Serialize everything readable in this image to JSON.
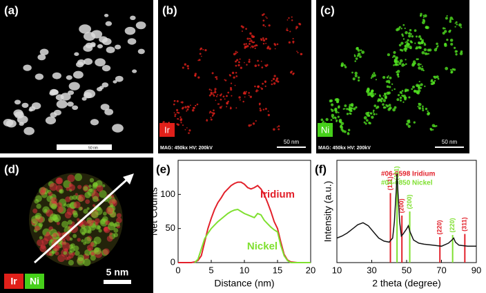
{
  "images": [
    {
      "label": "(a)",
      "scale_bar": "50 nm"
    },
    {
      "label": "(b)",
      "element": "Ir",
      "info": "MAG: 450kx  HV: 200kV",
      "scale_bar": "50 nm"
    },
    {
      "label": "(c)",
      "element": "Ni",
      "info": "MAG: 450kx  HV: 200kV",
      "scale_bar": "50 nm"
    },
    {
      "label": "(d)",
      "elements": [
        "Ir",
        "Ni"
      ],
      "scale_bar": "5 nm"
    }
  ],
  "chart_data": [
    {
      "type": "line",
      "panel_label": "(e)",
      "x_label": "Distance (nm)",
      "y_label": "Net Counts",
      "x": [
        0,
        1,
        2,
        2.5,
        3,
        3.5,
        4,
        4.5,
        5,
        5.5,
        6,
        6.5,
        7,
        7.5,
        8,
        8.5,
        9,
        9.5,
        10,
        10.5,
        11,
        11.5,
        12,
        12.5,
        13,
        13.5,
        14,
        14.5,
        15,
        15.5,
        16,
        16.5,
        17,
        18,
        20
      ],
      "series": [
        {
          "name": "Iridium",
          "color": "#e2202a",
          "values": [
            0,
            0,
            0,
            1,
            3,
            10,
            30,
            50,
            65,
            78,
            88,
            95,
            103,
            108,
            113,
            116,
            118,
            118,
            115,
            110,
            108,
            110,
            113,
            108,
            100,
            88,
            75,
            60,
            50,
            30,
            12,
            4,
            1,
            0,
            0
          ]
        },
        {
          "name": "Nickel",
          "color": "#7fe030",
          "values": [
            null,
            null,
            null,
            0,
            5,
            20,
            35,
            43,
            50,
            55,
            60,
            64,
            68,
            72,
            75,
            77,
            78,
            75,
            72,
            70,
            68,
            66,
            72,
            70,
            62,
            57,
            52,
            48,
            45,
            25,
            10,
            3,
            0,
            0,
            0
          ]
        }
      ],
      "xlim": [
        0,
        20
      ],
      "xticks": [
        0,
        5,
        10,
        15,
        20
      ],
      "ylim": [
        0,
        150
      ],
      "yticks": [
        0,
        50,
        100
      ]
    },
    {
      "type": "line",
      "panel_label": "(f)",
      "x_label": "2 theta (degree)",
      "y_label": "Intensity (a.u.)",
      "x": [
        10,
        13,
        16,
        19,
        22,
        25,
        28,
        31,
        34,
        37,
        40,
        42,
        43,
        44,
        44.5,
        45,
        46,
        47,
        48,
        50,
        51,
        52,
        54,
        57,
        60,
        65,
        70,
        74,
        76,
        77,
        78,
        80,
        85,
        90
      ],
      "series": [
        {
          "color": "#111111",
          "values": [
            24,
            26,
            29,
            33,
            37,
            39,
            36,
            30,
            24,
            21,
            20,
            24,
            40,
            70,
            87,
            70,
            40,
            26,
            28,
            33,
            36,
            30,
            22,
            19,
            18,
            17,
            16,
            19,
            22,
            24,
            20,
            17,
            16,
            16
          ]
        }
      ],
      "references": [
        {
          "name": "#06-0598 Iridium",
          "color": "#e2202a",
          "positions": [
            40.7,
            47.3,
            69.1,
            83.4
          ],
          "heights": [
            68,
            46,
            25,
            28
          ],
          "labels": [
            "(111)",
            "(200)",
            "(220)",
            "(311)"
          ]
        },
        {
          "name": "#04-0850 Nickel",
          "color": "#7fe030",
          "positions": [
            44.5,
            51.8,
            76.4
          ],
          "heights": [
            78,
            50,
            27
          ],
          "labels": [
            "(111)",
            "(200)",
            "(220)"
          ]
        }
      ],
      "xlim": [
        10,
        90
      ],
      "xticks": [
        10,
        30,
        50,
        70,
        90
      ],
      "ylim": [
        0,
        100
      ]
    }
  ]
}
